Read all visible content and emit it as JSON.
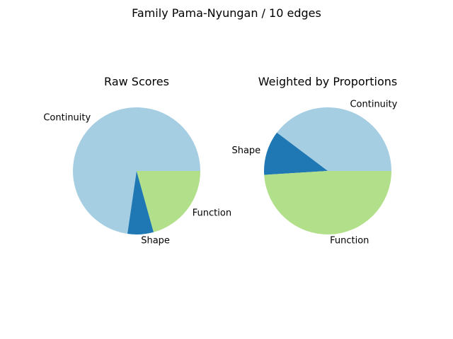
{
  "figure": {
    "title": "Family Pama-Nyungan / 10 edges"
  },
  "chart_data": [
    {
      "type": "pie",
      "title": "Raw Scores",
      "labels": [
        "Continuity",
        "Shape",
        "Function"
      ],
      "values": [
        72.7,
        6.6,
        20.7
      ],
      "colors": [
        "#a6cee3",
        "#1f78b4",
        "#b2df8a"
      ],
      "start_angle": 0,
      "direction": "counterclockwise"
    },
    {
      "type": "pie",
      "title": "Weighted by Proportions",
      "labels": [
        "Continuity",
        "Shape",
        "Function"
      ],
      "values": [
        39.7,
        11.3,
        49.0
      ],
      "colors": [
        "#a6cee3",
        "#1f78b4",
        "#b2df8a"
      ],
      "start_angle": 0,
      "direction": "counterclockwise"
    }
  ]
}
